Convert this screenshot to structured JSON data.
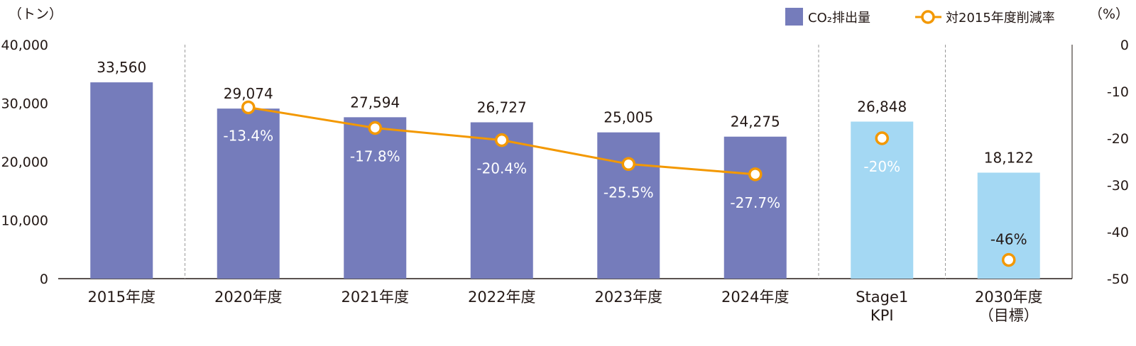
{
  "chart_data": {
    "type": "bar",
    "categories": [
      [
        "2015年度"
      ],
      [
        "2020年度"
      ],
      [
        "2021年度"
      ],
      [
        "2022年度"
      ],
      [
        "2023年度"
      ],
      [
        "2024年度"
      ],
      [
        "Stage1",
        "KPI"
      ],
      [
        "2030年度",
        "（目標）"
      ]
    ],
    "series": [
      {
        "name": "CO₂排出量",
        "kind": "bar",
        "axis": "left",
        "values": [
          33560,
          29074,
          27594,
          26727,
          25005,
          24275,
          26848,
          18122
        ],
        "labels": [
          "33,560",
          "29,074",
          "27,594",
          "26,727",
          "25,005",
          "24,275",
          "26,848",
          "18,122"
        ],
        "colors": [
          "#757cbb",
          "#757cbb",
          "#757cbb",
          "#757cbb",
          "#757cbb",
          "#757cbb",
          "#a4d8f3",
          "#a4d8f3"
        ]
      },
      {
        "name": "対2015年度削減率",
        "kind": "line",
        "axis": "right",
        "color": "#f39800",
        "values": [
          null,
          -13.4,
          -17.8,
          -20.4,
          -25.5,
          -27.7,
          -20,
          -46
        ],
        "labels": [
          "",
          "-13.4%",
          "-17.8%",
          "-20.4%",
          "-25.5%",
          "-27.7%",
          "-20%",
          "-46%"
        ],
        "connected": [
          false,
          true,
          true,
          true,
          true,
          true,
          false,
          false
        ]
      }
    ],
    "left_axis": {
      "unit_label": "（トン）",
      "range": [
        0,
        40000
      ],
      "ticks": [
        "0",
        "10,000",
        "20,000",
        "30,000",
        "40,000"
      ]
    },
    "right_axis": {
      "unit_label": "（%）",
      "range": [
        -50,
        0
      ],
      "ticks": [
        "0",
        "-10",
        "-20",
        "-30",
        "-40",
        "-50"
      ]
    },
    "legend": {
      "placement": "top-right",
      "items": [
        "CO₂排出量",
        "対2015年度削減率"
      ]
    },
    "separators_after": [
      "2015年度",
      "2024年度",
      "Stage1 KPI"
    ],
    "grid": false
  }
}
